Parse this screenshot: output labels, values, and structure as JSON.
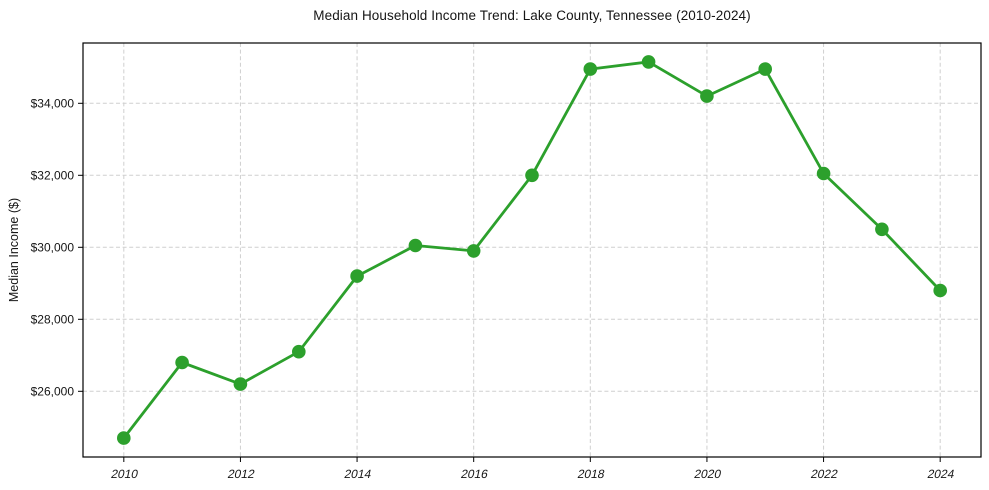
{
  "chart_data": {
    "type": "line",
    "title": "Median Household Income Trend: Lake County, Tennessee (2010-2024)",
    "xlabel": "",
    "ylabel": "Median Income ($)",
    "series": [
      {
        "name": "Median household income",
        "x": [
          2010,
          2011,
          2012,
          2013,
          2014,
          2015,
          2016,
          2017,
          2018,
          2019,
          2020,
          2021,
          2022,
          2023,
          2024
        ],
        "values": [
          24700,
          26800,
          26200,
          27100,
          29200,
          30050,
          29900,
          32000,
          34950,
          35150,
          34200,
          34950,
          32050,
          30500,
          28800
        ]
      }
    ],
    "xlim": [
      2009.3,
      2024.7
    ],
    "ylim": [
      24175,
      35675
    ],
    "x_ticks": {
      "values": [
        2010,
        2012,
        2014,
        2016,
        2018,
        2020,
        2022,
        2024
      ],
      "labels": [
        "2010",
        "2012",
        "2014",
        "2016",
        "2018",
        "2020",
        "2022",
        "2024"
      ]
    },
    "y_ticks": {
      "values": [
        26000,
        28000,
        30000,
        32000,
        34000
      ],
      "labels": [
        "$26,000",
        "$28,000",
        "$30,000",
        "$32,000",
        "$34,000"
      ]
    },
    "legend": "none",
    "grid": "dashed-both-axes",
    "style": {
      "line_color": "#2ca02c",
      "marker_color": "#2ca02c",
      "marker_shape": "circle",
      "grid_color": "#cfcfcf",
      "axis_color": "#000000",
      "background_color": "#ffffff"
    }
  }
}
